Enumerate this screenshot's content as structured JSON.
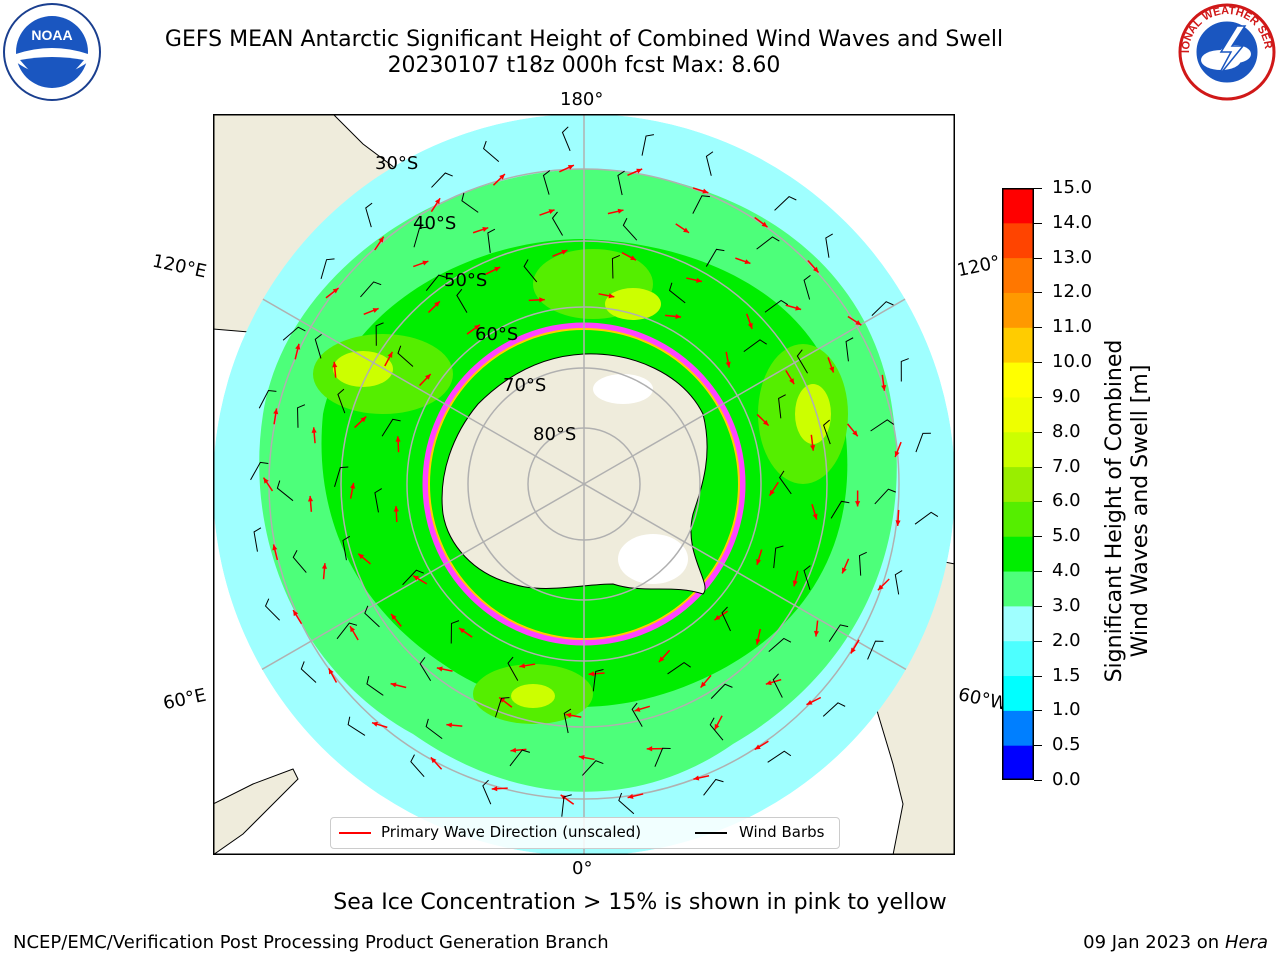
{
  "header": {
    "title_line1": "GEFS MEAN Antarctic Significant Height of Combined Wind Waves and Swell",
    "title_line2": "20230107 t18z 000h fcst   Max: 8.60"
  },
  "logos": {
    "left": {
      "name": "noaa-logo",
      "text": "NOAA"
    },
    "right": {
      "name": "nws-logo",
      "text": "NATIONAL WEATHER SERVICE"
    }
  },
  "map": {
    "projection": "south-polar-stereographic",
    "longitude_labels": {
      "top": "180°",
      "bottom": "0°",
      "upper_left": "120°E",
      "lower_left": "60°E",
      "upper_right": "120°",
      "lower_right": "60°W"
    },
    "latitude_labels": [
      "30°S",
      "40°S",
      "50°S",
      "60°S",
      "70°S",
      "80°S"
    ],
    "colors": {
      "land": "#efecdc",
      "ocean_low": "#9fffff",
      "ice": "#ff44ff"
    }
  },
  "legend": {
    "wave_label": "Primary Wave Direction (unscaled)",
    "wave_color": "#ff0000",
    "wind_label": "Wind Barbs",
    "wind_color": "#000000"
  },
  "colorbar": {
    "label_line1": "Significant Height of Combined",
    "label_line2": "Wind Waves and Swell [m]",
    "ticks": [
      "15.0",
      "14.0",
      "13.0",
      "12.0",
      "11.0",
      "10.0",
      "9.0",
      "8.0",
      "7.0",
      "6.0",
      "5.0",
      "4.0",
      "3.0",
      "2.0",
      "1.5",
      "1.0",
      "0.5",
      "0.0"
    ],
    "colors_bottom_to_top": [
      "#0000ff",
      "#007fff",
      "#00ffff",
      "#4dffff",
      "#9fffff",
      "#4dff7a",
      "#00ee00",
      "#55ee00",
      "#99ee00",
      "#ccff00",
      "#eeff00",
      "#ffff00",
      "#ffcc00",
      "#ff9900",
      "#ff7700",
      "#ff4400",
      "#ff0000"
    ]
  },
  "footer": {
    "note": "Sea Ice Concentration > 15% is shown in pink to yellow",
    "org": "NCEP/EMC/Verification Post Processing Product Generation Branch",
    "date": "09 Jan 2023 on ",
    "machine": "Hera"
  }
}
